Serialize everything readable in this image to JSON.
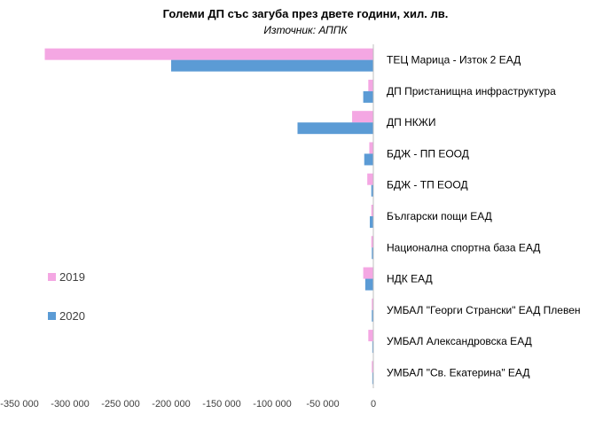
{
  "chart_data": {
    "type": "bar",
    "orientation": "horizontal",
    "title": "Големи ДП със загуба през двете години, хил. лв.",
    "subtitle": "Източник: АППК",
    "categories": [
      "ТЕЦ Марица - Изток 2 ЕАД",
      "ДП Пристанищна инфраструктура",
      "ДП НКЖИ",
      "БДЖ - ПП ЕООД",
      "БДЖ - ТП ЕООД",
      "Български пощи ЕАД",
      "Национална спортна база ЕАД",
      "НДК ЕАД",
      "УМБАЛ \"Георги Странски\" ЕАД Плевен",
      "УМБАЛ Александровска ЕАД",
      "УМБАЛ \"Св. Екатерина\" ЕАД"
    ],
    "series": [
      {
        "name": "2019",
        "color": "#f4a7e3",
        "values": [
          -325000,
          -5000,
          -21000,
          -4000,
          -6000,
          -2000,
          -2000,
          -10000,
          -1500,
          -5000,
          -1500
        ]
      },
      {
        "name": "2020",
        "color": "#5b9bd5",
        "values": [
          -200000,
          -10000,
          -75000,
          -9000,
          -2000,
          -3500,
          -1500,
          -8000,
          -1500,
          -1000,
          -1000
        ]
      }
    ],
    "xlim": [
      -350000,
      0
    ],
    "xticks": [
      -350000,
      -300000,
      -250000,
      -200000,
      -150000,
      -100000,
      -50000,
      0
    ],
    "xtick_labels": [
      "-350 000",
      "-300 000",
      "-250 000",
      "-200 000",
      "-150 000",
      "-100 000",
      "-50 000",
      "0"
    ],
    "legend_position": "left",
    "grid": false
  }
}
